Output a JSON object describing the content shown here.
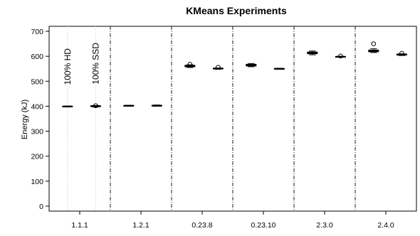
{
  "chart_data": {
    "type": "boxplot",
    "title": "KMeans Experiments",
    "ylabel": "Energy (kJ)",
    "xlabel": "",
    "ylim": [
      -20,
      720
    ],
    "yticks": [
      0,
      100,
      200,
      300,
      400,
      500,
      600,
      700
    ],
    "groups": [
      "1.1.1",
      "1.2.1",
      "0.23.8",
      "0.23.10",
      "2.3.0",
      "2.4.0"
    ],
    "annotations": [
      "100% HD",
      "100% SSD"
    ],
    "boxes": [
      {
        "group": "1.1.1",
        "config": "100% HD",
        "min": 397,
        "q1": 398,
        "median": 399,
        "q3": 400,
        "max": 401,
        "outliers": []
      },
      {
        "group": "1.1.1",
        "config": "100% SSD",
        "min": 397,
        "q1": 399,
        "median": 400,
        "q3": 402,
        "max": 403,
        "outliers": [
          402
        ]
      },
      {
        "group": "1.2.1",
        "config": "100% HD",
        "min": 400,
        "q1": 401,
        "median": 402,
        "q3": 403,
        "max": 404,
        "outliers": []
      },
      {
        "group": "1.2.1",
        "config": "100% SSD",
        "min": 400,
        "q1": 401,
        "median": 402,
        "q3": 404,
        "max": 405,
        "outliers": []
      },
      {
        "group": "0.23.8",
        "config": "100% HD",
        "min": 555,
        "q1": 558,
        "median": 561,
        "q3": 564,
        "max": 566,
        "outliers": [
          568
        ]
      },
      {
        "group": "0.23.8",
        "config": "100% SSD",
        "min": 548,
        "q1": 550,
        "median": 551,
        "q3": 552,
        "max": 553,
        "outliers": [
          556
        ]
      },
      {
        "group": "0.23.10",
        "config": "100% HD",
        "min": 558,
        "q1": 561,
        "median": 564,
        "q3": 568,
        "max": 571,
        "outliers": []
      },
      {
        "group": "0.23.10",
        "config": "100% SSD",
        "min": 548,
        "q1": 549,
        "median": 550,
        "q3": 551,
        "max": 552,
        "outliers": []
      },
      {
        "group": "2.3.0",
        "config": "100% HD",
        "min": 606,
        "q1": 610,
        "median": 614,
        "q3": 617,
        "max": 621,
        "outliers": []
      },
      {
        "group": "2.3.0",
        "config": "100% SSD",
        "min": 596,
        "q1": 597,
        "median": 598,
        "q3": 599,
        "max": 600,
        "outliers": [
          601
        ]
      },
      {
        "group": "2.4.0",
        "config": "100% HD",
        "min": 615,
        "q1": 618,
        "median": 621,
        "q3": 625,
        "max": 630,
        "outliers": [
          650
        ]
      },
      {
        "group": "2.4.0",
        "config": "100% SSD",
        "min": 603,
        "q1": 605,
        "median": 607,
        "q3": 609,
        "max": 610,
        "outliers": [
          612
        ]
      }
    ],
    "grid": false,
    "legend": "none"
  }
}
